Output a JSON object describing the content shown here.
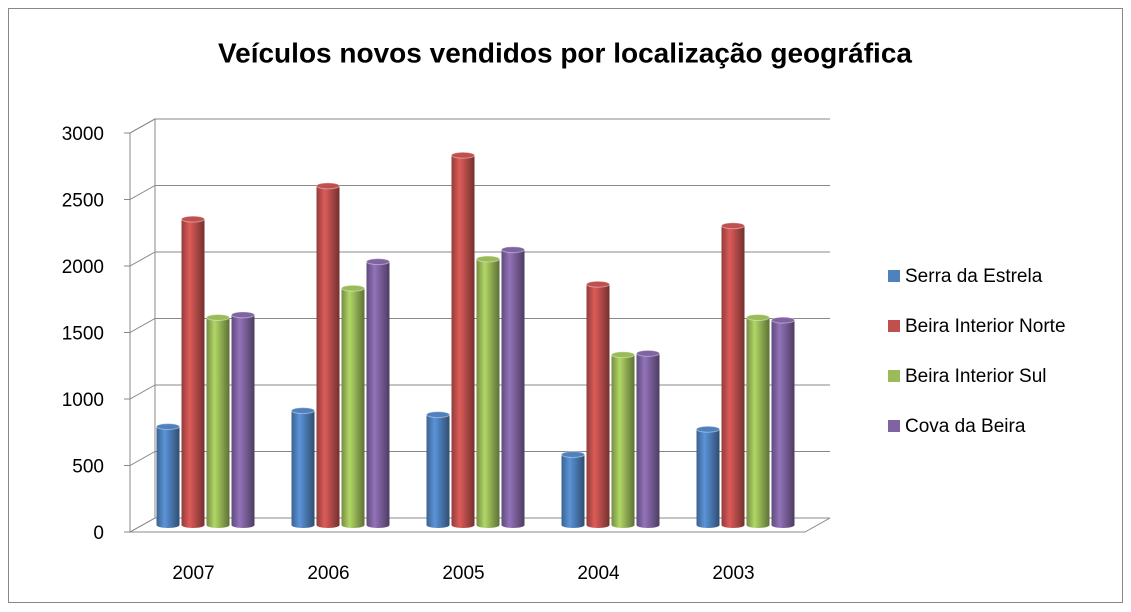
{
  "chart_data": {
    "type": "bar",
    "title": "Veículos novos vendidos por localização geográfica",
    "categories": [
      "2007",
      "2006",
      "2005",
      "2004",
      "2003"
    ],
    "series": [
      {
        "name": "Serra da Estrela",
        "color": "#4f81bd",
        "values": [
          740,
          860,
          830,
          530,
          720
        ]
      },
      {
        "name": "Beira Interior Norte",
        "color": "#c0504d",
        "values": [
          2300,
          2550,
          2780,
          1810,
          2250
        ]
      },
      {
        "name": "Beira Interior Sul",
        "color": "#9bbb59",
        "values": [
          1560,
          1780,
          2000,
          1280,
          1560
        ]
      },
      {
        "name": "Cova da Beira",
        "color": "#8064a2",
        "values": [
          1580,
          1980,
          2070,
          1290,
          1540
        ]
      }
    ],
    "ylim": [
      0,
      3000
    ],
    "yticks": [
      0,
      500,
      1000,
      1500,
      2000,
      2500,
      3000
    ],
    "grid": true,
    "legend": "right"
  }
}
